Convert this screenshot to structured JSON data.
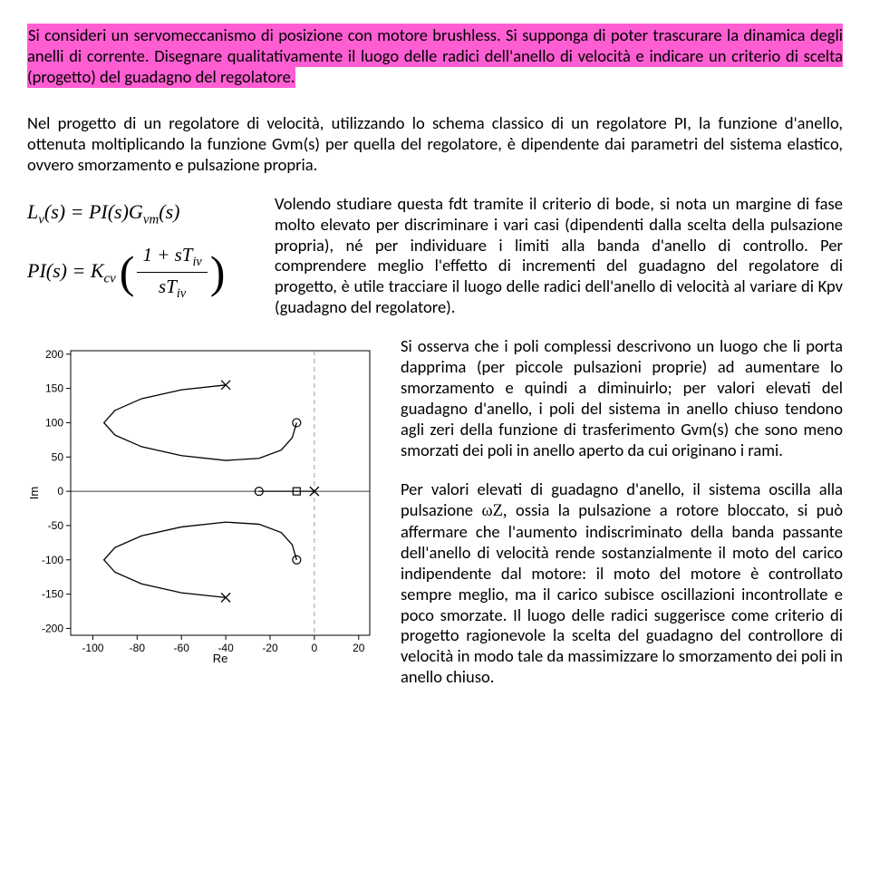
{
  "intro_text": "Si consideri un servomeccanismo di posizione con motore brushless. Si supponga di poter trascurare la dinamica degli anelli di corrente. Disegnare qualitativamente il luogo delle radici dell'anello di velocità e indicare un criterio di scelta (progetto) del guadagno del regolatore.",
  "para1": "Nel progetto di un regolatore di velocità, utilizzando lo schema classico di un regolatore PI, la funzione d'anello, ottenuta moltiplicando la funzione Gvm(s) per quella del regolatore, è dipendente dai parametri del sistema elastico, ovvero smorzamento e pulsazione propria.",
  "para2": "Volendo studiare questa fdt tramite il criterio di bode, si nota un margine di fase molto elevato per discriminare i vari casi (dipendenti dalla scelta della pulsazione propria), né per individuare i limiti alla banda d'anello di controllo. Per comprendere meglio l'effetto di incrementi del guadagno del regolatore di progetto, è utile tracciare il luogo delle radici dell'anello di velocità al variare di Kpv (guadagno del regolatore).",
  "para3a": "Si osserva che i poli complessi descrivono un luogo che li porta dapprima (per piccole pulsazioni proprie) ad aumentare lo smorzamento e quindi a diminuirlo; per valori elevati del guadagno d'anello, i poli del sistema in anello chiuso tendono agli zeri della funzione di trasferimento Gvm(s) che sono meno smorzati dei poli in anello aperto da cui originano i rami.",
  "para3b_pre": "Per valori elevati di guadagno d'anello, il sistema oscilla alla pulsazione ",
  "para3b_post": " ossia la pulsazione a rotore bloccato, si può affermare che l'aumento indiscriminato della banda passante dell'anello di velocità rende sostanzialmente il moto del carico indipendente dal motore: il moto del motore è controllato sempre meglio, ma il carico subisce oscillazioni incontrollate e poco smorzate. Il luogo delle radici suggerisce come criterio di progetto ragionevole la scelta del guadagno del controllore di velocità in modo tale da massimizzare lo smorzamento dei poli in anello chiuso.",
  "omega_label": "ωZ,",
  "formula": {
    "lv": "L",
    "lv_sub": "v",
    "s": "(s) = PI(s)G",
    "gvm_sub": "vm",
    "s2": "(s)",
    "pi": "PI(s) = K",
    "kcv_sub": "cv",
    "num_pre": "1 + sT",
    "num_sub": "iv",
    "den_pre": "sT",
    "den_sub": "iv"
  },
  "chart": {
    "xlabel": "Re",
    "ylabel": "Im",
    "xlim": [
      -110,
      25
    ],
    "ylim": [
      -210,
      205
    ],
    "xticks": [
      -100,
      -80,
      -60,
      -40,
      -20,
      0,
      20
    ],
    "yticks": [
      -200,
      -150,
      -100,
      -50,
      0,
      50,
      100,
      150,
      200
    ],
    "axis_color": "#000000",
    "tick_color": "#808080",
    "label_fontsize": 13,
    "tick_fontsize": 12,
    "curve_color": "#000000",
    "curve_width": 1.3,
    "marker_x_positions": [
      {
        "re": -40,
        "im": 155
      },
      {
        "re": -40,
        "im": -155
      },
      {
        "re": 0,
        "im": 0
      }
    ],
    "marker_o_positions": [
      {
        "re": -8,
        "im": 100
      },
      {
        "re": -8,
        "im": -100
      },
      {
        "re": -25,
        "im": 0
      }
    ],
    "marker_sq": {
      "re": -8,
      "im": 0
    },
    "zero_line_x": 0,
    "curves": [
      [
        [
          -40,
          155
        ],
        [
          -60,
          148
        ],
        [
          -78,
          135
        ],
        [
          -90,
          118
        ],
        [
          -95,
          100
        ],
        [
          -90,
          82
        ],
        [
          -78,
          65
        ],
        [
          -60,
          52
        ],
        [
          -40,
          45
        ],
        [
          -25,
          48
        ],
        [
          -15,
          60
        ],
        [
          -10,
          78
        ],
        [
          -8,
          100
        ]
      ],
      [
        [
          -40,
          -155
        ],
        [
          -60,
          -148
        ],
        [
          -78,
          -135
        ],
        [
          -90,
          -118
        ],
        [
          -95,
          -100
        ],
        [
          -90,
          -82
        ],
        [
          -78,
          -65
        ],
        [
          -60,
          -52
        ],
        [
          -40,
          -45
        ],
        [
          -25,
          -48
        ],
        [
          -15,
          -60
        ],
        [
          -10,
          -78
        ],
        [
          -8,
          -100
        ]
      ],
      [
        [
          0,
          0
        ],
        [
          -8,
          0
        ],
        [
          -25,
          0
        ]
      ]
    ]
  }
}
